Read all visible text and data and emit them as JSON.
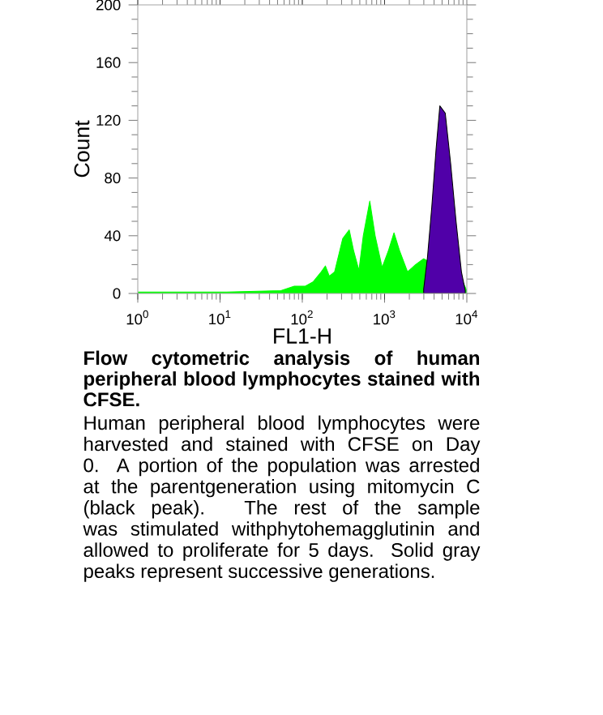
{
  "chart_data": {
    "type": "area",
    "title": "Flow cytometric analysis of human peripheral blood lymphocytes stained with CFSE.",
    "annotations": [
      "Human peripheral blood lymphocytes were harvested and stained with CFSE on Day 0. A portion of the population was arrested at the parentgeneration using mitomycin C (black peak). The rest of the sample was stimulated withphytohemagglutinin and allowed to proliferate for 5 days. Solid gray peaks represent successive generations."
    ],
    "xlabel": "FL1-H",
    "ylabel": "Count",
    "log": "x",
    "grid": false,
    "xlim": [
      1,
      10000
    ],
    "ylim": [
      0,
      200
    ],
    "xticks": [
      {
        "value": 1,
        "label": "10$^{0}$"
      },
      {
        "value": 10,
        "label": "10$^{1}$"
      },
      {
        "value": 100,
        "label": "10$^{2}$"
      },
      {
        "value": 1000,
        "label": "10$^{3}$"
      },
      {
        "value": 10000,
        "label": "10$^{4}$"
      }
    ],
    "yticks": [
      0,
      40,
      80,
      120,
      160,
      200
    ],
    "series": [
      {
        "color": "#00ff00",
        "x": [
          1,
          12,
          55,
          80,
          108,
          135,
          170,
          191,
          213,
          247,
          310,
          372,
          419,
          488,
          551,
          661,
          768,
          934,
          1119,
          1302,
          1514,
          1900,
          2384,
          2988,
          3475,
          4357,
          5464,
          6855,
          8596,
          10000
        ],
        "values": [
          1,
          1,
          2,
          5,
          5,
          8,
          15,
          19,
          12,
          15,
          38,
          44,
          30,
          16,
          40,
          64,
          40,
          18,
          30,
          42,
          30,
          15,
          20,
          24,
          null,
          null,
          null,
          null,
          10,
          2
        ]
      },
      {
        "color": "#5000a8",
        "x": [
          2988,
          3321,
          3750,
          4227,
          4699,
          5464,
          6358,
          7396,
          8596,
          9556
        ],
        "values": [
          3,
          25,
          60,
          100,
          130,
          125,
          90,
          50,
          15,
          2
        ]
      }
    ]
  }
}
